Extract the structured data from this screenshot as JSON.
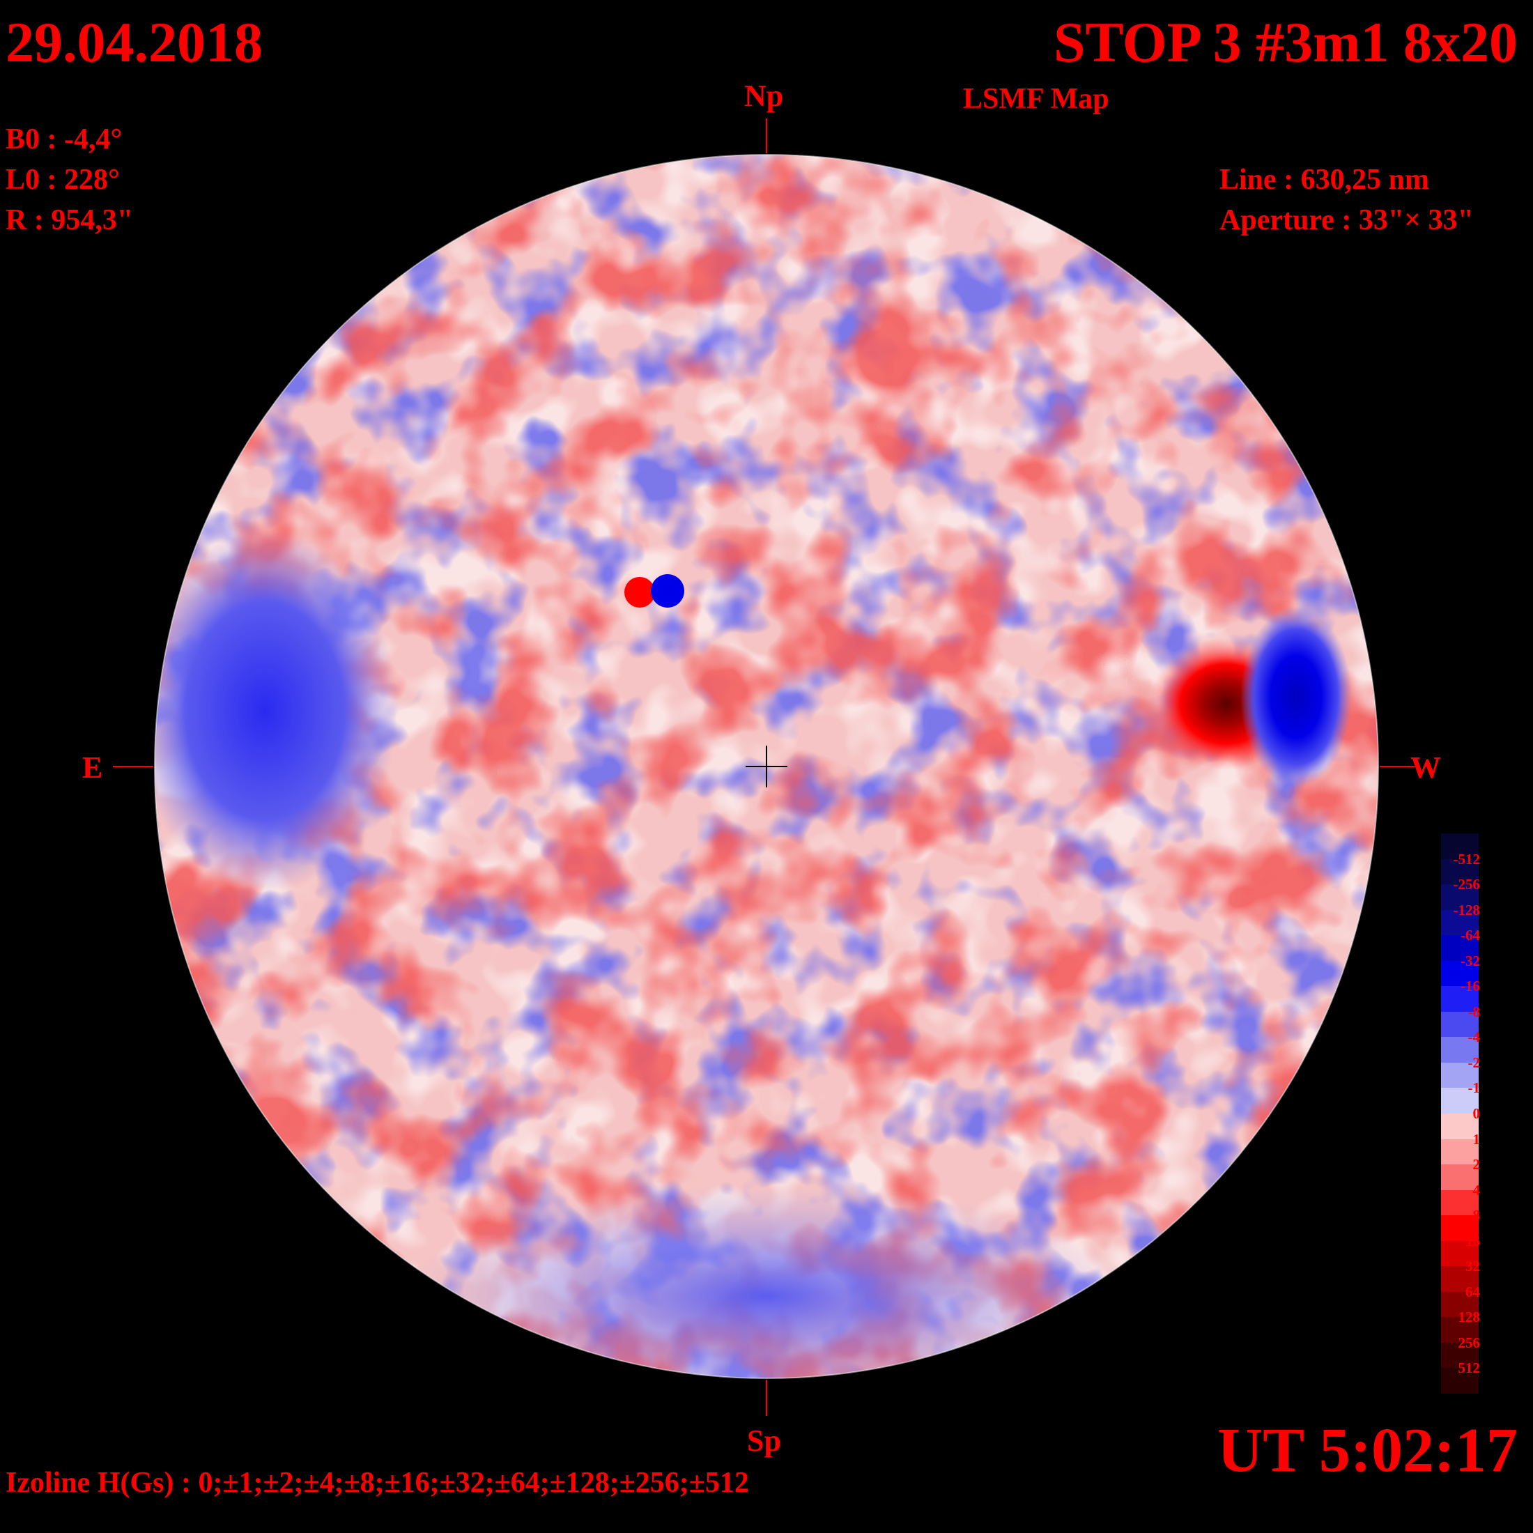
{
  "header": {
    "date": "29.04.2018",
    "title": "STOP 3 #3m1 8x20",
    "subtitle": "LSMF  Map"
  },
  "params": {
    "b0": "B0 : -4,4°",
    "l0": "L0 : 228°",
    "r": "R  : 954,3\""
  },
  "instrument": {
    "line": "Line :  630,25 nm",
    "aperture": "Aperture : 33\"× 33\""
  },
  "directions": {
    "north": "Np",
    "south": "Sp",
    "east": "E",
    "west": "W"
  },
  "time": "UT 5:02:17",
  "izoline": "Izoline H(Gs) : 0;±1;±2;±4;±8;±16;±32;±64;±128;±256;±512",
  "colorbar": {
    "labels": [
      "-512",
      "-256",
      "-128",
      "-64",
      "-32",
      "-16",
      "-8",
      "-4",
      "-2",
      "-1",
      "0",
      "1",
      "2",
      "4",
      "8",
      "16",
      "32",
      "64",
      "128",
      "256",
      "512"
    ],
    "colors": [
      "#050530",
      "#07074a",
      "#0a0a6e",
      "#0b0b96",
      "#0000c0",
      "#0000e8",
      "#1f1ff5",
      "#4a4af0",
      "#7878f0",
      "#a4a4f4",
      "#ccccf8",
      "#fcc8c8",
      "#fca0a0",
      "#fa7070",
      "#fb3030",
      "#ff0000",
      "#d80000",
      "#b00000",
      "#880000",
      "#600000",
      "#3c0000",
      "#2a0000"
    ]
  }
}
